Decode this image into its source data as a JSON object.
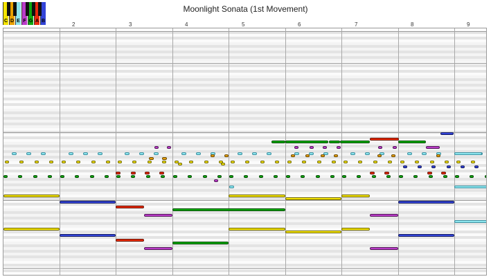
{
  "app": {
    "title": "Moonlight Sonata (1st Movement)"
  },
  "legend": {
    "keys": [
      {
        "label": "C",
        "color": "#f5e400"
      },
      {
        "label": "D",
        "color": "#e8a000"
      },
      {
        "label": "E",
        "color": "#8ee6ee"
      },
      {
        "label": "F",
        "color": "#ba3bc8"
      },
      {
        "label": "G",
        "color": "#0ea80e"
      },
      {
        "label": "A",
        "color": "#e82a0a"
      },
      {
        "label": "B",
        "color": "#3344d8"
      }
    ]
  },
  "measures": [
    "2",
    "3",
    "4",
    "5",
    "6",
    "7",
    "8",
    "9"
  ],
  "note_colors": {
    "C": "#f5e400",
    "D": "#e8a000",
    "E": "#8ee6ee",
    "F": "#ba3bc8",
    "G": "#0ea80e",
    "A": "#e82a0a",
    "B": "#3344d8"
  }
}
